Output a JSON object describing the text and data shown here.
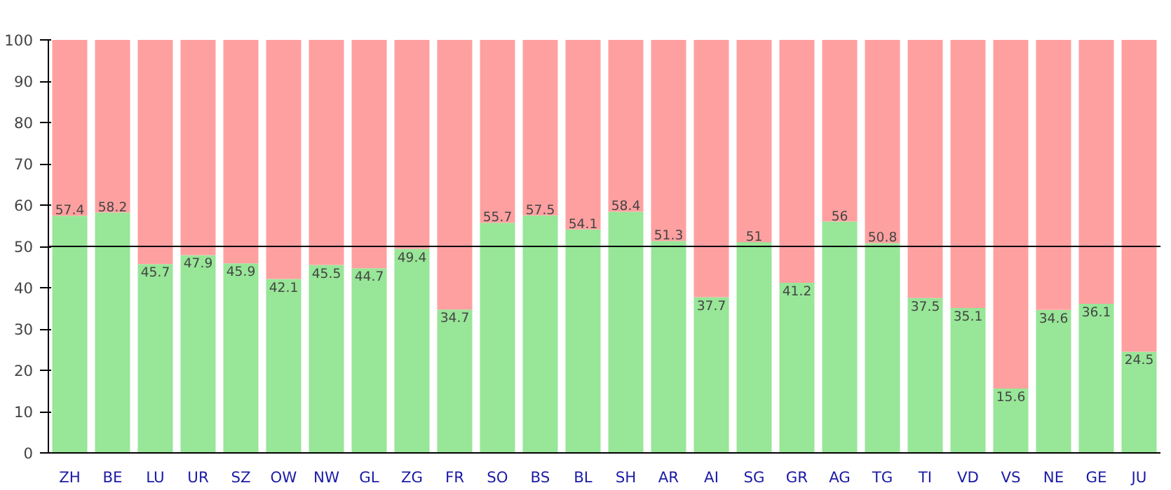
{
  "chart_data": {
    "type": "bar",
    "stacked": true,
    "categories": [
      "ZH",
      "BE",
      "LU",
      "UR",
      "SZ",
      "OW",
      "NW",
      "GL",
      "ZG",
      "FR",
      "SO",
      "BS",
      "BL",
      "SH",
      "AR",
      "AI",
      "SG",
      "GR",
      "AG",
      "TG",
      "TI",
      "VD",
      "VS",
      "NE",
      "GE",
      "JU"
    ],
    "series": [
      {
        "color": "#98e698",
        "values": [
          57.4,
          58.2,
          45.7,
          47.9,
          45.9,
          42.1,
          45.5,
          44.7,
          49.4,
          34.7,
          55.7,
          57.5,
          54.1,
          58.4,
          51.3,
          37.7,
          51,
          41.2,
          56,
          50.8,
          37.5,
          35.1,
          15.6,
          34.6,
          36.1,
          24.5
        ],
        "value_labels": [
          "57.4",
          "58.2",
          "45.7",
          "47.9",
          "45.9",
          "42.1",
          "45.5",
          "44.7",
          "49.4",
          "34.7",
          "55.7",
          "57.5",
          "54.1",
          "58.4",
          "51.3",
          "37.7",
          "51",
          "41.2",
          "56",
          "50.8",
          "37.5",
          "35.1",
          "15.6",
          "34.6",
          "36.1",
          "24.5"
        ]
      },
      {
        "color": "#ffa0a0",
        "values": [
          42.6,
          41.8,
          54.3,
          52.1,
          54.1,
          57.9,
          54.5,
          55.3,
          50.6,
          65.3,
          44.3,
          42.5,
          45.9,
          41.6,
          48.7,
          62.3,
          49,
          58.8,
          44,
          49.2,
          62.5,
          64.9,
          84.4,
          65.4,
          63.9,
          75.5
        ]
      }
    ],
    "ylim": [
      0,
      100
    ],
    "yticks": [
      0,
      10,
      20,
      30,
      40,
      50,
      60,
      70,
      80,
      90,
      100
    ],
    "ref_lines": [
      {
        "axis": "y",
        "value": 50,
        "color": "#000000"
      }
    ],
    "grid": false
  }
}
